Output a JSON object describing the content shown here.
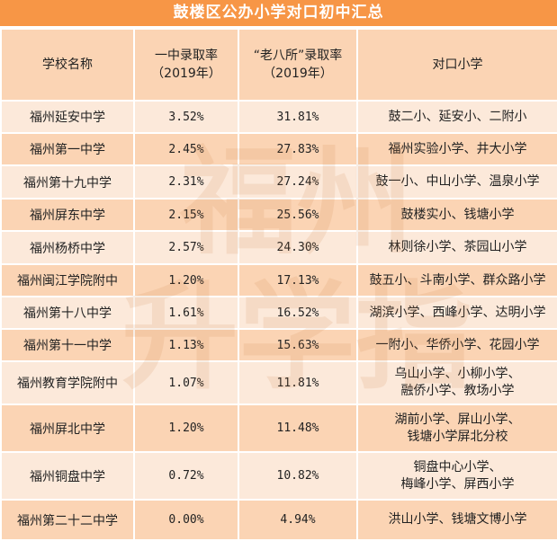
{
  "title": "鼓楼区公办小学对口初中汇总",
  "headers": {
    "school": "学校名称",
    "yizhong_line1": "一中录取率",
    "yizhong_line2": "（2019年）",
    "laoba_line1": "“老八所”录取率",
    "laoba_line2": "（2019年）",
    "feeder": "对口小学"
  },
  "rows": [
    {
      "school": "福州延安中学",
      "yizhong": "3.52%",
      "laoba": "31.81%",
      "feeder1": "鼓二小、延安小、二附小",
      "feeder2": ""
    },
    {
      "school": "福州第一中学",
      "yizhong": "2.45%",
      "laoba": "27.83%",
      "feeder1": "福州实验小学、井大小学",
      "feeder2": ""
    },
    {
      "school": "福州第十九中学",
      "yizhong": "2.31%",
      "laoba": "27.24%",
      "feeder1": "鼓一小、中山小学、温泉小学",
      "feeder2": ""
    },
    {
      "school": "福州屏东中学",
      "yizhong": "2.15%",
      "laoba": "25.56%",
      "feeder1": "鼓楼实小、钱塘小学",
      "feeder2": ""
    },
    {
      "school": "福州杨桥中学",
      "yizhong": "2.57%",
      "laoba": "24.30%",
      "feeder1": "林则徐小学、茶园山小学",
      "feeder2": ""
    },
    {
      "school": "福州闽江学院附中",
      "yizhong": "1.20%",
      "laoba": "17.13%",
      "feeder1": "鼓五小、斗南小学、群众路小学",
      "feeder2": ""
    },
    {
      "school": "福州第十八中学",
      "yizhong": "1.61%",
      "laoba": "16.52%",
      "feeder1": "湖滨小学、西峰小学、达明小学",
      "feeder2": ""
    },
    {
      "school": "福州第十一中学",
      "yizhong": "1.13%",
      "laoba": "15.63%",
      "feeder1": "一附小、华侨小学、花园小学",
      "feeder2": ""
    },
    {
      "school": "福州教育学院附中",
      "yizhong": "1.07%",
      "laoba": "11.81%",
      "feeder1": "乌山小学、小柳小学、",
      "feeder2": "融侨小学、教场小学"
    },
    {
      "school": "福州屏北中学",
      "yizhong": "1.20%",
      "laoba": "11.48%",
      "feeder1": "湖前小学、屏山小学、",
      "feeder2": "钱塘小学屏北分校"
    },
    {
      "school": "福州铜盘中学",
      "yizhong": "0.72%",
      "laoba": "10.82%",
      "feeder1": "铜盘中心小学、",
      "feeder2": "梅峰小学、屏西小学"
    },
    {
      "school": "福州第二十二中学",
      "yizhong": "0.00%",
      "laoba": "4.94%",
      "feeder1": "洪山小学、钱塘文博小学",
      "feeder2": ""
    }
  ],
  "watermark": {
    "line1": "福州",
    "line2": "升学指"
  },
  "colors": {
    "title_bg": "#F79646",
    "header_bg": "#FBD4B4",
    "row_light": "#FCE9DA",
    "row_dark": "#FBD4B4"
  }
}
